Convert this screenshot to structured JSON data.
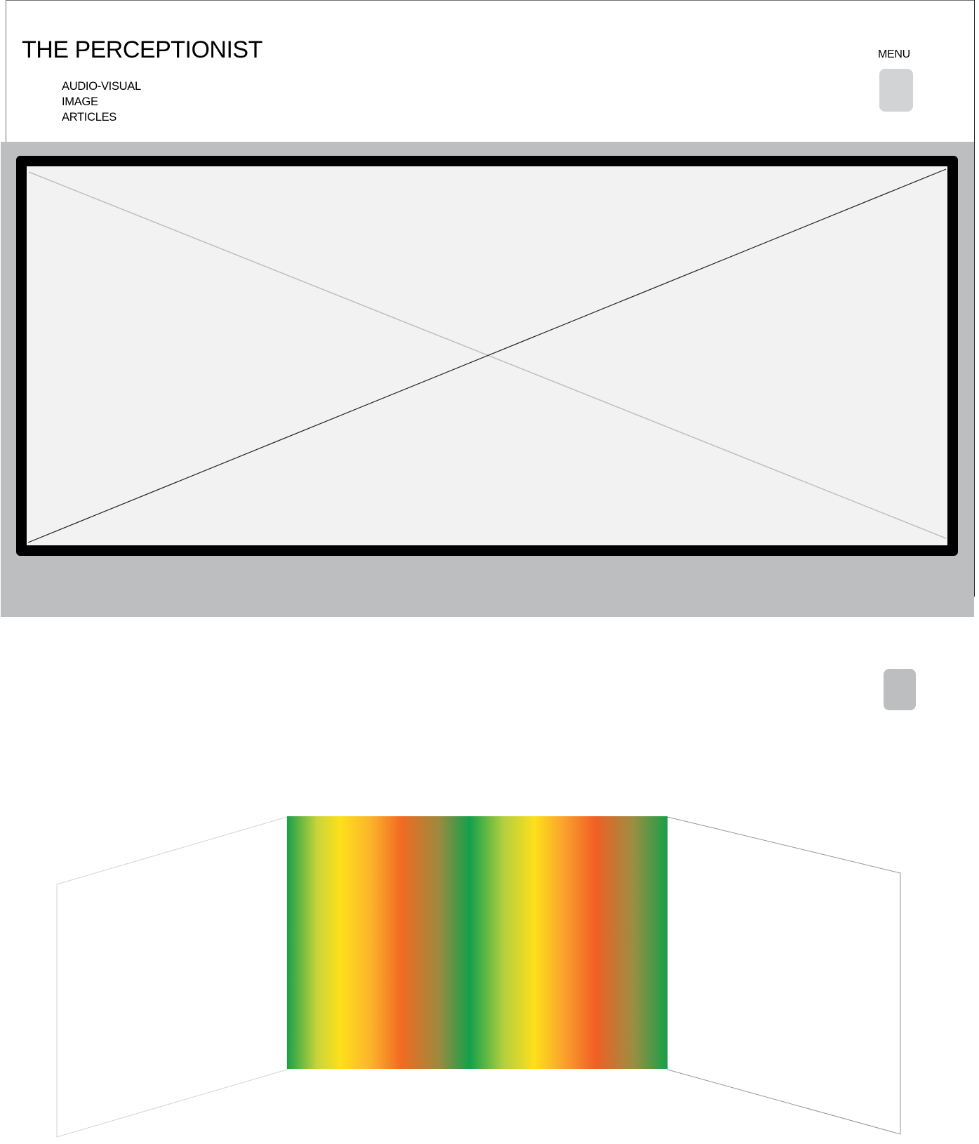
{
  "header": {
    "title": "THE PERCEPTIONIST",
    "menu_label": "MENU"
  },
  "nav": {
    "items": [
      {
        "label": "AUDIO-VISUAL"
      },
      {
        "label": "IMAGE"
      },
      {
        "label": "ARTICLES"
      }
    ]
  },
  "colors": {
    "hero_band": "#bcbec0",
    "frame_border": "#000000",
    "placeholder_fill": "#f2f2f2",
    "menu_button": "#d1d3d4",
    "gradient_stops": [
      "#1aa04a",
      "#fde01b",
      "#f26a22",
      "#9c8a3f",
      "#12a04a",
      "#fde01b",
      "#f15f24",
      "#9d8d42",
      "#17a048"
    ]
  },
  "icons": {
    "hero_placeholder": "image-placeholder-cross-icon",
    "menu": "menu-button-icon"
  }
}
